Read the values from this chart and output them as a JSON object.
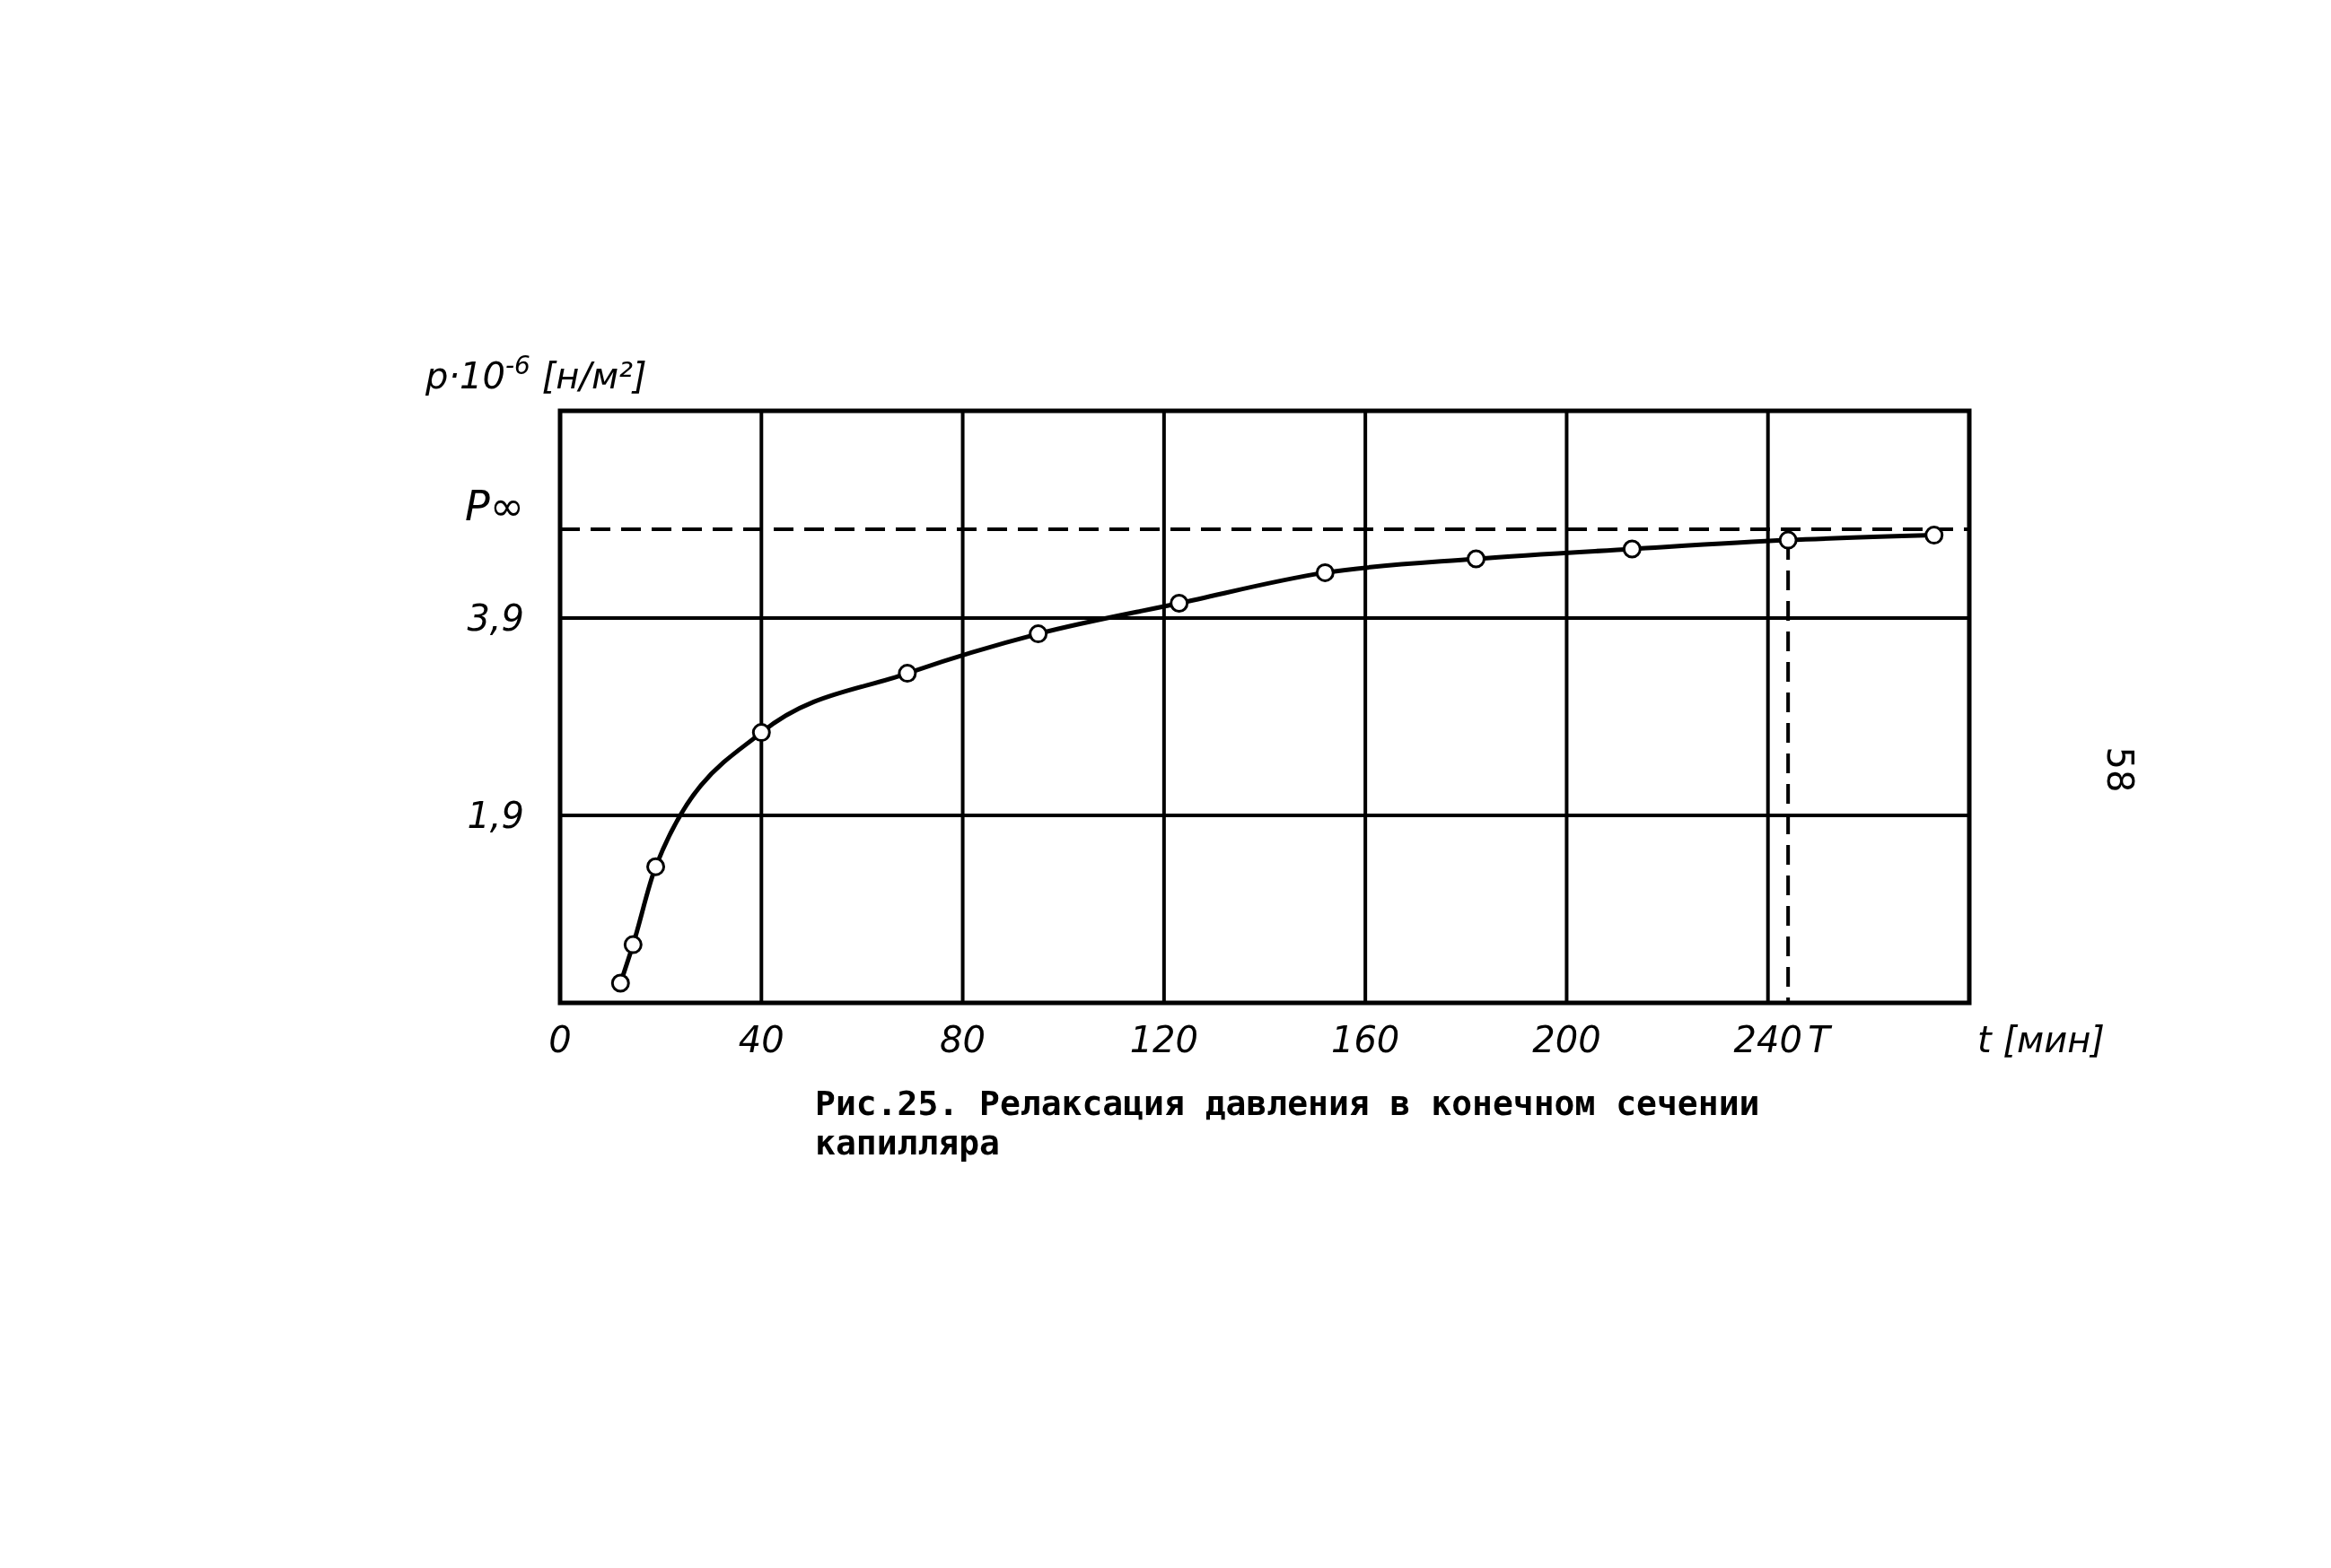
{
  "chart_data": {
    "type": "line",
    "title": "Рис.25. Релаксация давления в конечном сечении капилляра",
    "xlabel": "t [мин]",
    "ylabel": "p·10$^{-6}$ [н/м²]",
    "annotations": [
      "58"
    ],
    "x": [
      12,
      14.5,
      19,
      40,
      69,
      95,
      123,
      152,
      182,
      213,
      244,
      273
    ],
    "series": [
      {
        "color": "#000000",
        "values": [
          0.2,
          0.59,
          1.38,
          2.74,
          3.34,
          3.74,
          4.05,
          4.36,
          4.5,
          4.6,
          4.69,
          4.74
        ]
      }
    ],
    "xlim": [
      0,
      280
    ],
    "xticks": [
      0,
      40,
      80,
      120,
      160,
      200,
      240
    ],
    "ylim": [
      0,
      6
    ],
    "yticks": [
      {
        "value": 1.9,
        "label": "1,9"
      },
      {
        "value": 3.9,
        "label": "3,9"
      }
    ],
    "ref_lines": [
      {
        "axis": "y",
        "value": 4.8,
        "label": "P∞",
        "line_style": "dashed"
      },
      {
        "axis": "x",
        "value": 244,
        "label": "T",
        "line_style": "dashed"
      }
    ],
    "grid": true,
    "marker": "circle",
    "line_style": "solid"
  }
}
